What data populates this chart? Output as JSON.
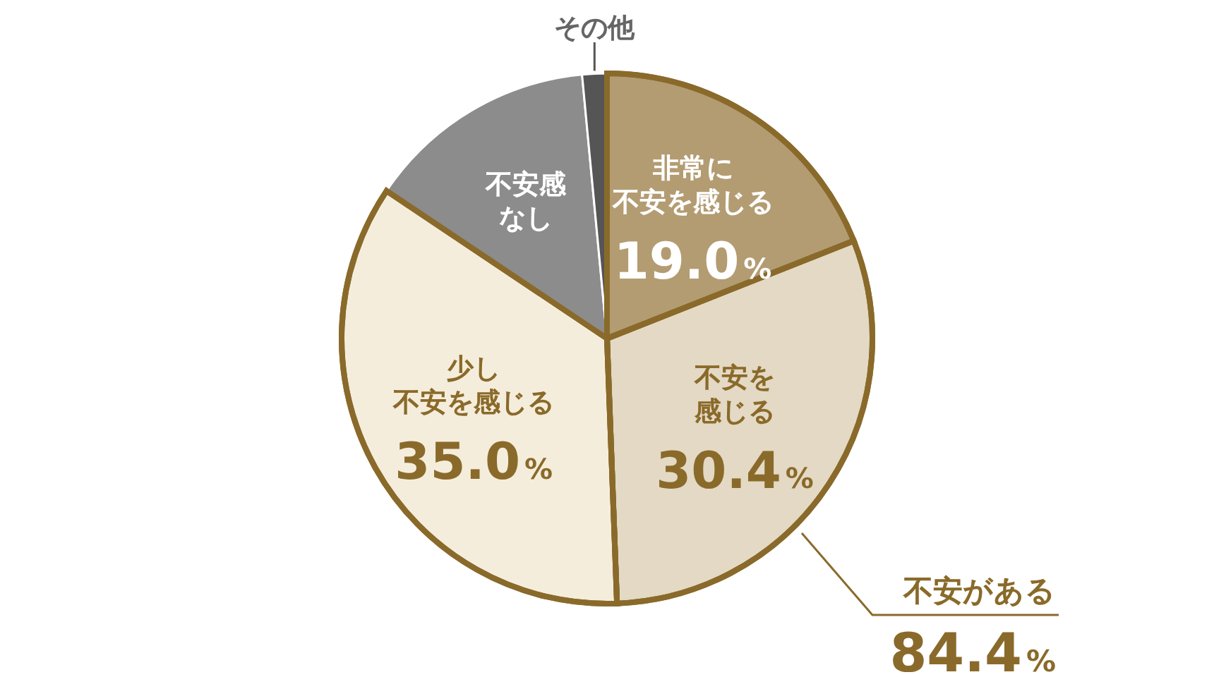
{
  "chart_data": {
    "type": "pie",
    "categories": [
      "非常に不安を感じる",
      "不安を感じる",
      "少し不安を感じる",
      "不安感なし",
      "その他"
    ],
    "values": [
      19.0,
      30.4,
      35.0,
      14.1,
      1.5
    ],
    "colors": [
      "#b39c72",
      "#e3d9c4",
      "#f5eddc",
      "#8c8c8c",
      "#555555"
    ],
    "value_labels": [
      "19.0%",
      "30.4%",
      "35.0%",
      null,
      null
    ],
    "annotations": [
      "不安がある",
      "84.4%"
    ]
  }
}
